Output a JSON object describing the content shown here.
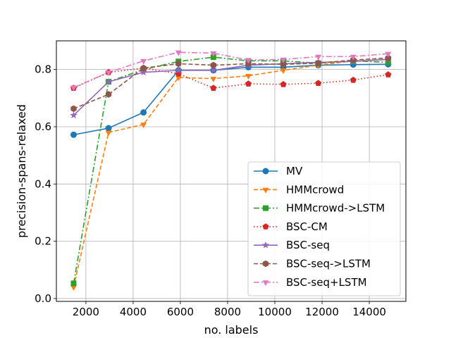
{
  "chart_data": {
    "type": "line",
    "xlabel": "no. labels",
    "ylabel": "precision-spans-relaxed",
    "xlim": [
      750,
      15550
    ],
    "ylim": [
      -0.01,
      0.9
    ],
    "xticks": [
      2000,
      4000,
      6000,
      8000,
      10000,
      12000,
      14000
    ],
    "yticks": [
      0.0,
      0.2,
      0.4,
      0.6,
      0.8
    ],
    "xtick_labels": [
      "2000",
      "4000",
      "6000",
      "8000",
      "10000",
      "12000",
      "14000"
    ],
    "ytick_labels": [
      "0.0",
      "0.2",
      "0.4",
      "0.6",
      "0.8"
    ],
    "grid": true,
    "legend_position": "lower-right",
    "x": [
      1480,
      2960,
      4440,
      5920,
      7400,
      8880,
      10360,
      11840,
      13320,
      14800
    ],
    "series": [
      {
        "name": "MV",
        "color": "#1f77b4",
        "dash": "solid",
        "marker": "circle",
        "values": [
          0.572,
          0.595,
          0.65,
          0.797,
          0.797,
          0.808,
          0.808,
          0.815,
          0.817,
          0.818
        ]
      },
      {
        "name": "HMMcrowd",
        "color": "#ff7f0e",
        "dash": "dashed",
        "marker": "triangle-down",
        "values": [
          0.04,
          0.58,
          0.608,
          0.772,
          0.768,
          0.778,
          0.797,
          0.815,
          0.83,
          0.835
        ]
      },
      {
        "name": "HMMcrowd->LSTM",
        "color": "#2ca02c",
        "dash": "dashdot",
        "marker": "square",
        "values": [
          0.053,
          0.757,
          0.8,
          0.828,
          0.843,
          0.83,
          0.83,
          0.822,
          0.83,
          0.825
        ]
      },
      {
        "name": "BSC-CM",
        "color": "#d62728",
        "dash": "dotted",
        "marker": "pentagon",
        "values": [
          0.735,
          0.79,
          0.805,
          0.785,
          0.735,
          0.75,
          0.748,
          0.752,
          0.763,
          0.782
        ]
      },
      {
        "name": "BSC-seq",
        "color": "#9467bd",
        "dash": "solid",
        "marker": "star",
        "values": [
          0.64,
          0.757,
          0.79,
          0.797,
          0.797,
          0.815,
          0.82,
          0.825,
          0.828,
          0.835
        ]
      },
      {
        "name": "BSC-seq->LSTM",
        "color": "#8c564b",
        "dash": "dashed",
        "marker": "hexagon",
        "values": [
          0.663,
          0.713,
          0.805,
          0.82,
          0.815,
          0.82,
          0.818,
          0.822,
          0.833,
          0.84
        ]
      },
      {
        "name": "BSC-seq+LSTM",
        "color": "#e377c2",
        "dash": "dashdot",
        "marker": "triangle-down",
        "values": [
          0.737,
          0.79,
          0.83,
          0.86,
          0.857,
          0.833,
          0.835,
          0.845,
          0.845,
          0.855
        ]
      }
    ]
  }
}
